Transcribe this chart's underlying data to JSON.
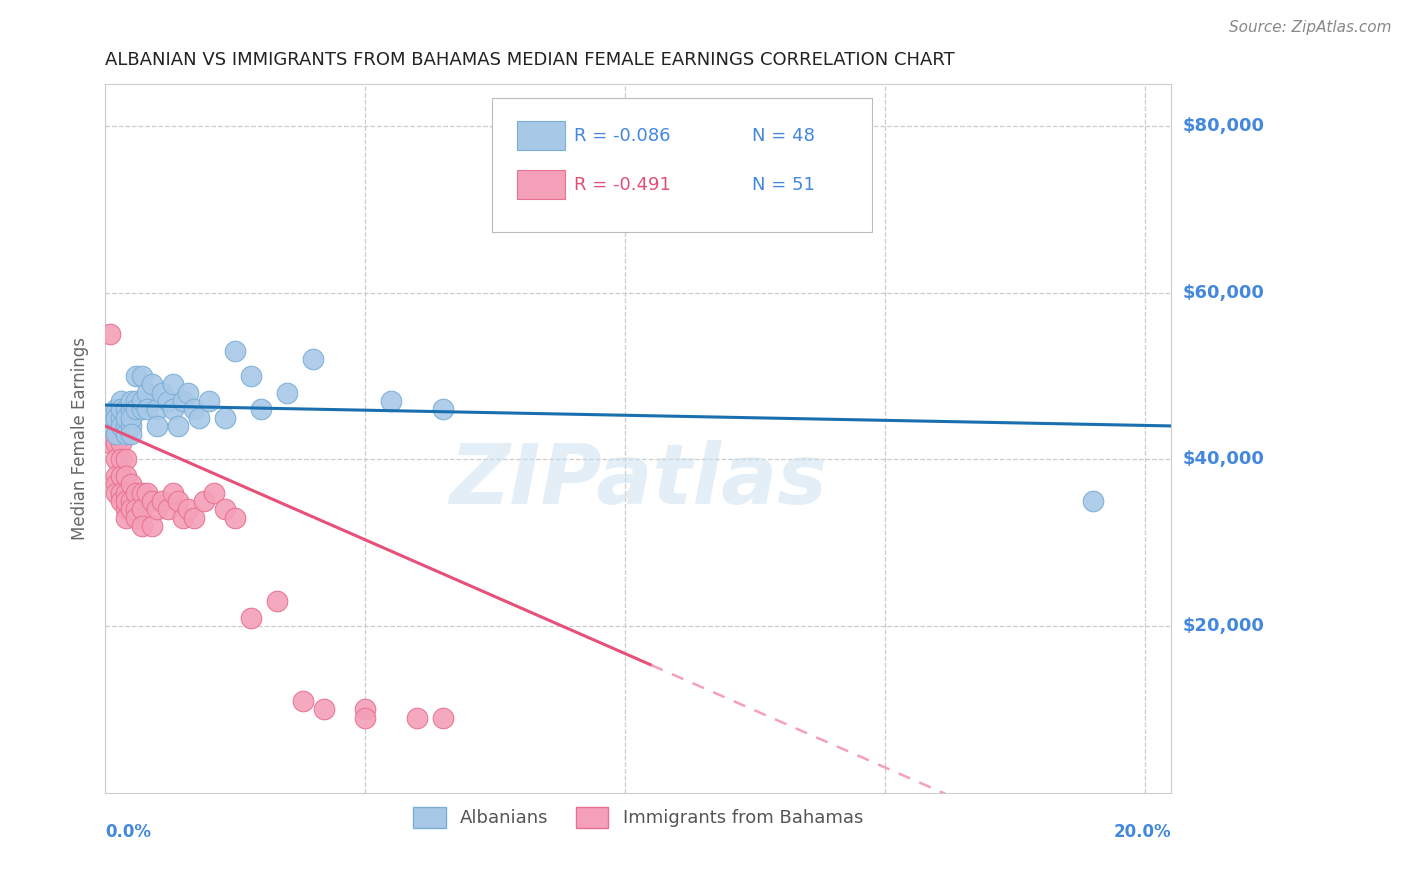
{
  "title": "ALBANIAN VS IMMIGRANTS FROM BAHAMAS MEDIAN FEMALE EARNINGS CORRELATION CHART",
  "source": "Source: ZipAtlas.com",
  "ylabel": "Median Female Earnings",
  "watermark": "ZIPatlas",
  "xlim": [
    0.0,
    0.205
  ],
  "ylim": [
    0,
    85000
  ],
  "yticks": [
    20000,
    40000,
    60000,
    80000
  ],
  "ytick_labels": [
    "$20,000",
    "$40,000",
    "$60,000",
    "$80,000"
  ],
  "R_albanian": "-0.086",
  "N_albanian": "48",
  "R_bahamas": "-0.491",
  "N_bahamas": "51",
  "albanian_x": [
    0.001,
    0.001,
    0.002,
    0.002,
    0.002,
    0.003,
    0.003,
    0.003,
    0.003,
    0.004,
    0.004,
    0.004,
    0.004,
    0.005,
    0.005,
    0.005,
    0.005,
    0.005,
    0.006,
    0.006,
    0.006,
    0.007,
    0.007,
    0.007,
    0.008,
    0.008,
    0.009,
    0.01,
    0.01,
    0.011,
    0.012,
    0.013,
    0.013,
    0.014,
    0.015,
    0.016,
    0.017,
    0.018,
    0.02,
    0.023,
    0.025,
    0.028,
    0.03,
    0.035,
    0.04,
    0.055,
    0.065,
    0.19
  ],
  "albanian_y": [
    45000,
    44000,
    46000,
    45000,
    43000,
    47000,
    45000,
    44000,
    46000,
    44000,
    46000,
    45000,
    43000,
    44000,
    46000,
    45000,
    47000,
    43000,
    50000,
    47000,
    46000,
    46000,
    50000,
    47000,
    48000,
    46000,
    49000,
    46000,
    44000,
    48000,
    47000,
    49000,
    46000,
    44000,
    47000,
    48000,
    46000,
    45000,
    47000,
    45000,
    53000,
    50000,
    46000,
    48000,
    52000,
    47000,
    46000,
    35000
  ],
  "bahamas_x": [
    0.001,
    0.001,
    0.001,
    0.002,
    0.002,
    0.002,
    0.002,
    0.002,
    0.003,
    0.003,
    0.003,
    0.003,
    0.003,
    0.004,
    0.004,
    0.004,
    0.004,
    0.004,
    0.004,
    0.005,
    0.005,
    0.005,
    0.006,
    0.006,
    0.006,
    0.007,
    0.007,
    0.007,
    0.008,
    0.009,
    0.009,
    0.01,
    0.011,
    0.012,
    0.013,
    0.014,
    0.015,
    0.016,
    0.017,
    0.019,
    0.021,
    0.023,
    0.025,
    0.028,
    0.033,
    0.038,
    0.042,
    0.05,
    0.05,
    0.06,
    0.065
  ],
  "bahamas_y": [
    43000,
    42000,
    55000,
    42000,
    40000,
    38000,
    37000,
    36000,
    42000,
    40000,
    38000,
    36000,
    35000,
    40000,
    38000,
    36000,
    34000,
    33000,
    35000,
    37000,
    35000,
    34000,
    36000,
    34000,
    33000,
    36000,
    34000,
    32000,
    36000,
    35000,
    32000,
    34000,
    35000,
    34000,
    36000,
    35000,
    33000,
    34000,
    33000,
    35000,
    36000,
    34000,
    33000,
    21000,
    23000,
    11000,
    10000,
    10000,
    9000,
    9000,
    9000
  ],
  "albanian_color": "#a8c8e8",
  "albanian_edge": "#7aaed4",
  "bahamas_color": "#f4a0b8",
  "bahamas_edge": "#e87090",
  "trendline_albanian_color": "#1a6faf",
  "trendline_bahamas_solid_color": "#e8507a",
  "trendline_bahamas_dash_color": "#f4a0b8",
  "background_color": "#ffffff",
  "grid_color": "#cccccc",
  "title_color": "#222222",
  "axis_label_color": "#4488dd",
  "source_color": "#888888",
  "ylabel_color": "#666666"
}
